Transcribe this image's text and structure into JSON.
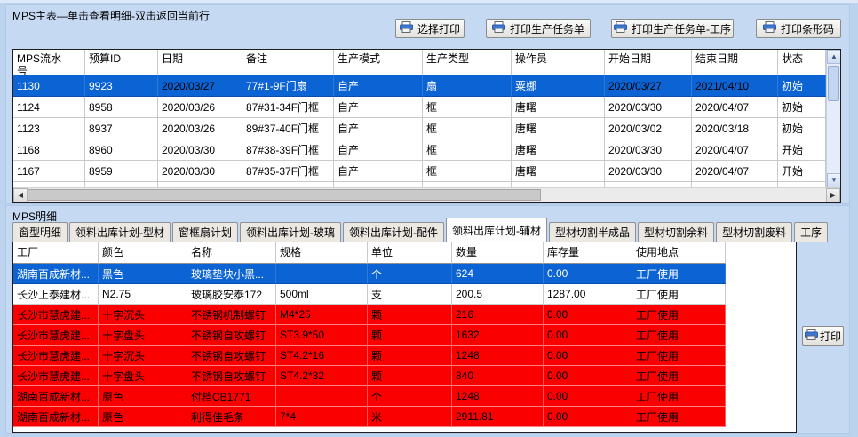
{
  "window": {
    "main_title": "MPS主表—单击查看明细-双击返回当前行",
    "detail_title": "MPS明细"
  },
  "toolbar": {
    "buttons": [
      "选择打印",
      "打印生产任务单",
      "打印生产任务单-工序",
      "打印条形码"
    ],
    "detail_print_label": "打印"
  },
  "main_table": {
    "columns": [
      "MPS流水\n号",
      "预算ID",
      "日期",
      "备注",
      "生产模式",
      "生产类型",
      "操作员",
      "开始日期",
      "结束日期",
      "状态"
    ],
    "rows": [
      {
        "id": "1130",
        "budget": "9923",
        "date": "2020/03/27",
        "remark": "77#1-9F门扇",
        "mode": "自产",
        "type": "扇",
        "operator": "粟娜",
        "start": "2020/03/27",
        "end": "2021/04/10",
        "status": "初始",
        "selected": true
      },
      {
        "id": "1124",
        "budget": "8958",
        "date": "2020/03/26",
        "remark": "87#31-34F门框",
        "mode": "自产",
        "type": "框",
        "operator": "唐曙",
        "start": "2020/03/30",
        "end": "2020/04/07",
        "status": "初始",
        "selected": false
      },
      {
        "id": "1123",
        "budget": "8937",
        "date": "2020/03/26",
        "remark": "89#37-40F门框",
        "mode": "自产",
        "type": "框",
        "operator": "唐曙",
        "start": "2020/03/02",
        "end": "2020/03/18",
        "status": "初始",
        "selected": false
      },
      {
        "id": "1168",
        "budget": "8960",
        "date": "2020/03/30",
        "remark": "87#38-39F门框",
        "mode": "自产",
        "type": "框",
        "operator": "唐曙",
        "start": "2020/03/30",
        "end": "2020/04/07",
        "status": "开始",
        "selected": false
      },
      {
        "id": "1167",
        "budget": "8959",
        "date": "2020/03/30",
        "remark": "87#35-37F门框",
        "mode": "自产",
        "type": "框",
        "operator": "唐曙",
        "start": "2020/03/30",
        "end": "2020/04/07",
        "status": "开始",
        "selected": false
      }
    ]
  },
  "tabs": [
    "窗型明细",
    "领料出库计划-型材",
    "窗框扇计划",
    "领料出库计划-玻璃",
    "领料出库计划-配件",
    "领料出库计划-辅材",
    "型材切割半成品",
    "型材切割余料",
    "型材切割废料",
    "工序"
  ],
  "active_tab_index": 5,
  "detail_table": {
    "columns": [
      "工厂",
      "颜色",
      "名称",
      "规格",
      "单位",
      "数量",
      "库存量",
      "使用地点"
    ],
    "rows": [
      {
        "factory": "湖南百成新材...",
        "color": "黑色",
        "name": "玻璃垫块小黑...",
        "spec": "",
        "unit": "个",
        "qty": "624",
        "stock": "0.00",
        "place": "工厂使用",
        "state": "selected"
      },
      {
        "factory": "长沙上泰建材...",
        "color": "N2.75",
        "name": "玻璃胶安泰172",
        "spec": "500ml",
        "unit": "支",
        "qty": "200.5",
        "stock": "1287.00",
        "place": "工厂使用",
        "state": "normal"
      },
      {
        "factory": "长沙市慧虎建...",
        "color": "十字沉头",
        "name": "不锈钢机制螺钉",
        "spec": "M4*25",
        "unit": "颗",
        "qty": "216",
        "stock": "0.00",
        "place": "工厂使用",
        "state": "alert"
      },
      {
        "factory": "长沙市慧虎建...",
        "color": "十字盘头",
        "name": "不锈钢自攻螺钉",
        "spec": "ST3.9*50",
        "unit": "颗",
        "qty": "1632",
        "stock": "0.00",
        "place": "工厂使用",
        "state": "alert"
      },
      {
        "factory": "长沙市慧虎建...",
        "color": "十字沉头",
        "name": "不锈钢自攻螺钉",
        "spec": "ST4.2*16",
        "unit": "颗",
        "qty": "1248",
        "stock": "0.00",
        "place": "工厂使用",
        "state": "alert"
      },
      {
        "factory": "长沙市慧虎建...",
        "color": "十字盘头",
        "name": "不锈钢自攻螺钉",
        "spec": "ST4.2*32",
        "unit": "颗",
        "qty": "840",
        "stock": "0.00",
        "place": "工厂使用",
        "state": "alert"
      },
      {
        "factory": "湖南百成新材...",
        "color": "原色",
        "name": "付档CB1771",
        "spec": "",
        "unit": "个",
        "qty": "1248",
        "stock": "0.00",
        "place": "工厂使用",
        "state": "alert"
      },
      {
        "factory": "湖南百成新材...",
        "color": "原色",
        "name": "利得佳毛条",
        "spec": "7*4",
        "unit": "米",
        "qty": "2911.81",
        "stock": "0.00",
        "place": "工厂使用",
        "state": "alert"
      }
    ]
  },
  "colors": {
    "selection_blue": "#0c63d3",
    "shortage_red": "#fa0000",
    "window_background": "#bcd3ee"
  }
}
